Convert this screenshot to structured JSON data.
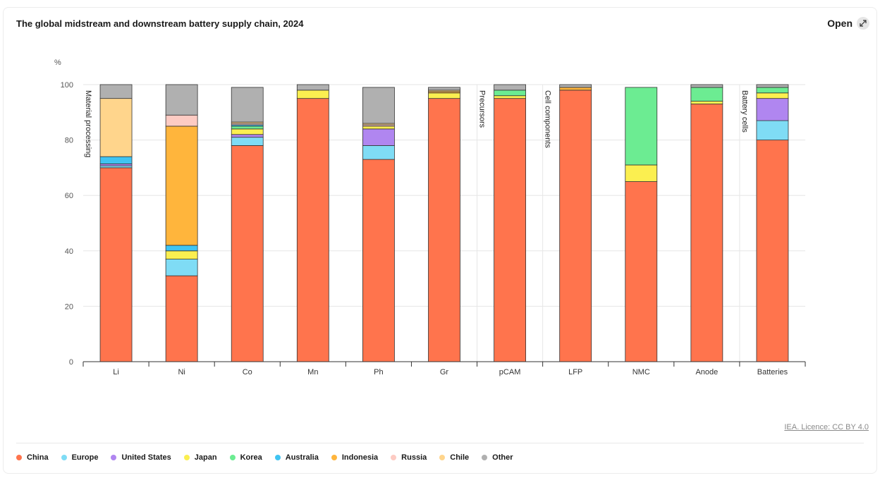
{
  "header": {
    "title": "The global midstream and downstream battery supply chain, 2024",
    "open_label": "Open"
  },
  "licence": "IEA. Licence: CC BY 4.0",
  "colors": {
    "China": "#ff744d",
    "Europe": "#7fdcf5",
    "United States": "#b086f0",
    "Japan": "#fbef50",
    "Korea": "#6cec92",
    "Australia": "#40c4f2",
    "Indonesia": "#ffb53c",
    "Russia": "#fdcbc3",
    "Chile": "#ffd58c",
    "Other": "#b0b0b0"
  },
  "chart_data": {
    "type": "bar",
    "stacked": true,
    "title": "The global midstream and downstream battery supply chain, 2024",
    "ylabel": "%",
    "xlabel": "",
    "ylim": [
      0,
      100
    ],
    "yticks": [
      0,
      20,
      40,
      60,
      80,
      100
    ],
    "grid": true,
    "legend_position": "bottom",
    "categories": [
      "Li",
      "Ni",
      "Co",
      "Mn",
      "Ph",
      "Gr",
      "pCAM",
      "LFP",
      "NMC",
      "Anode",
      "Batteries"
    ],
    "section_labels": [
      {
        "label": "Material processing",
        "start_index": 0
      },
      {
        "label": "Precursors",
        "start_index": 6
      },
      {
        "label": "Cell components",
        "start_index": 7
      },
      {
        "label": "Battery cells",
        "start_index": 10
      }
    ],
    "series": [
      {
        "name": "China",
        "values": [
          70,
          31,
          78,
          95,
          73,
          95,
          95,
          98,
          65,
          93,
          80
        ]
      },
      {
        "name": "Europe",
        "values": [
          0.7,
          6,
          3,
          0,
          5,
          0,
          0,
          0,
          0,
          0,
          7
        ]
      },
      {
        "name": "United States",
        "values": [
          0.7,
          0,
          1,
          0,
          6,
          0,
          0,
          0,
          0,
          0,
          8
        ]
      },
      {
        "name": "Japan",
        "values": [
          0,
          3,
          2,
          3,
          1,
          2,
          1,
          0,
          6,
          1,
          2
        ]
      },
      {
        "name": "Korea",
        "values": [
          0,
          0,
          1,
          0,
          0,
          0,
          2,
          0,
          28,
          5,
          2
        ]
      },
      {
        "name": "Australia",
        "values": [
          2.6,
          2,
          0.5,
          0,
          0,
          0,
          0,
          0,
          0,
          0,
          0
        ]
      },
      {
        "name": "Indonesia",
        "values": [
          0,
          43,
          0,
          0,
          0,
          0.5,
          0,
          1,
          0,
          0,
          0
        ]
      },
      {
        "name": "Russia",
        "values": [
          0,
          4,
          0.5,
          0,
          0.5,
          0,
          0,
          0,
          0,
          0,
          0
        ]
      },
      {
        "name": "Chile",
        "values": [
          21,
          0,
          0.5,
          0,
          0.5,
          0.5,
          0,
          0,
          0,
          0,
          0
        ]
      },
      {
        "name": "Other",
        "values": [
          5,
          11,
          12.5,
          2,
          13,
          1,
          2,
          1,
          0,
          1,
          1
        ]
      }
    ]
  }
}
